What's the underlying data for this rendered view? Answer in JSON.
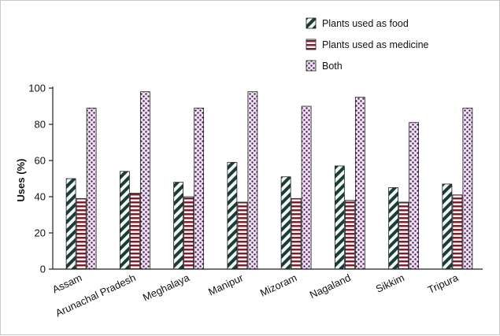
{
  "chart_data": {
    "type": "bar",
    "ylabel": "Uses (%)",
    "xlabel": "",
    "ylim": [
      0,
      100
    ],
    "yticks": [
      0,
      20,
      40,
      60,
      80,
      100
    ],
    "grid": false,
    "legend_position": "top-right",
    "categories": [
      "Assam",
      "Arunachal Pradesh",
      "Meghalaya",
      "Manipur",
      "Mizoram",
      "Nagaland",
      "Sikkim",
      "Tripura"
    ],
    "series": [
      {
        "name": "Plants used as food",
        "pattern": "diagonal-stripes",
        "color": "#1a3d3a",
        "values": [
          50,
          54,
          48,
          59,
          51,
          57,
          45,
          47
        ]
      },
      {
        "name": "Plants used as medicine",
        "pattern": "horizontal-stripes",
        "color": "#7a1f2e",
        "values": [
          39,
          42,
          40,
          37,
          39,
          38,
          37,
          41
        ]
      },
      {
        "name": "Both",
        "pattern": "dots",
        "color": "#4a1a55",
        "values": [
          89,
          98,
          89,
          98,
          90,
          95,
          81,
          89
        ]
      }
    ]
  }
}
